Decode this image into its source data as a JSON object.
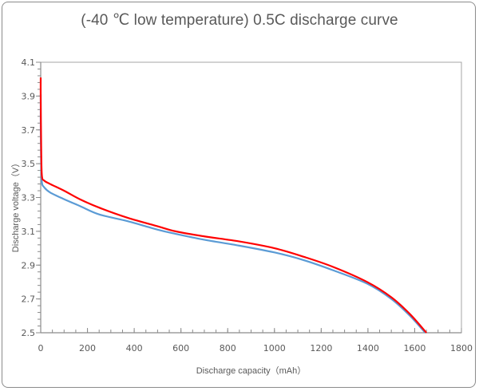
{
  "chart_data": {
    "type": "line",
    "title": "(-40 ℃ low temperature) 0.5C discharge curve",
    "xlabel": "Discharge capacity（mAh）",
    "ylabel": "Discharge voltage（V）",
    "xlim": [
      0,
      1800
    ],
    "ylim": [
      2.5,
      4.1
    ],
    "xticks": [
      0,
      200,
      400,
      600,
      800,
      1000,
      1200,
      1400,
      1600,
      1800
    ],
    "yticks": [
      "2.5",
      "2.7",
      "2.9",
      "3.1",
      "3.3",
      "3.5",
      "3.7",
      "3.9",
      "4.1"
    ],
    "ytick_values": [
      2.5,
      2.7,
      2.9,
      3.1,
      3.3,
      3.5,
      3.7,
      3.9,
      4.1
    ],
    "grid": false,
    "legend": "none",
    "series": [
      {
        "name": "red-curve",
        "color": "#ff0000",
        "x": [
          0,
          0,
          2,
          5,
          15,
          40,
          100,
          167,
          250,
          372,
          500,
          577,
          700,
          850,
          1000,
          1124,
          1250,
          1397,
          1500,
          1580,
          1650
        ],
        "y": [
          4.01,
          3.9,
          3.6,
          3.43,
          3.4,
          3.38,
          3.34,
          3.29,
          3.24,
          3.18,
          3.13,
          3.1,
          3.07,
          3.04,
          3.0,
          2.95,
          2.89,
          2.8,
          2.71,
          2.61,
          2.5
        ]
      },
      {
        "name": "blue-curve",
        "color": "#5b9bd5",
        "x": [
          0,
          0,
          2,
          5,
          15,
          40,
          100,
          167,
          250,
          372,
          500,
          577,
          700,
          850,
          1000,
          1124,
          1250,
          1397,
          1500,
          1580,
          1645
        ],
        "y": [
          3.91,
          3.7,
          3.5,
          3.39,
          3.36,
          3.33,
          3.29,
          3.25,
          3.2,
          3.16,
          3.11,
          3.085,
          3.05,
          3.015,
          2.975,
          2.93,
          2.87,
          2.79,
          2.7,
          2.6,
          2.5
        ]
      }
    ]
  }
}
